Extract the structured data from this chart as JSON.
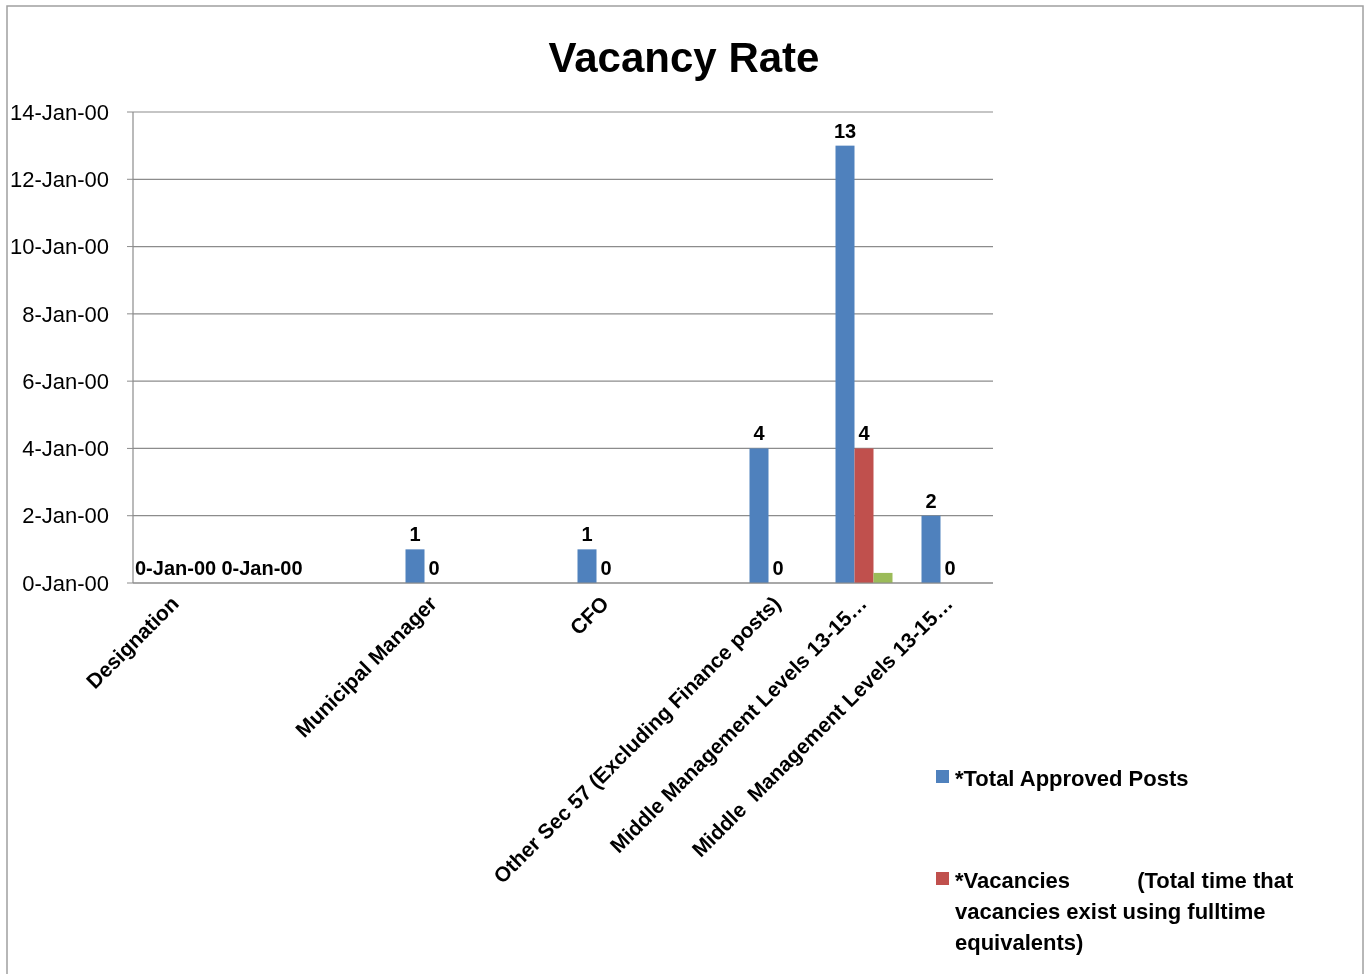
{
  "chart_data": {
    "type": "bar",
    "title": "Vacancy Rate",
    "categories": [
      "Designation",
      null,
      null,
      "Municipal Manager",
      null,
      "CFO",
      null,
      "Other Sec 57 (Excluding Finance posts)",
      "Middle Management Levels 13-15…",
      "Middle  Management Levels 13-15…"
    ],
    "series": [
      {
        "name": "*Total Approved Posts",
        "color": "#4f81bd",
        "values": [
          0,
          null,
          null,
          1,
          null,
          1,
          null,
          4,
          13,
          2
        ],
        "value_labels": [
          "0-Jan-00",
          null,
          null,
          "1",
          null,
          "1",
          null,
          "4",
          "13",
          "2"
        ]
      },
      {
        "name": "*Vacancies           (Total time that vacancies exist using fulltime equivalents)",
        "color": "#c0504d",
        "values": [
          null,
          0,
          null,
          0,
          null,
          0,
          null,
          0,
          4,
          0
        ],
        "value_labels": [
          null,
          "0-Jan-00",
          null,
          "0",
          null,
          "0",
          null,
          "0",
          "4",
          "0"
        ]
      },
      {
        "color": "#9bbb59",
        "values": [
          null,
          null,
          null,
          null,
          null,
          null,
          null,
          null,
          0.3,
          null
        ]
      }
    ],
    "ylim": [
      0,
      14
    ],
    "annotations": [
      "0-Jan-00",
      "2-Jan-00",
      "4-Jan-00",
      "6-Jan-00",
      "8-Jan-00",
      "10-Jan-00",
      "12-Jan-00",
      "14-Jan-00"
    ],
    "grid": "y",
    "legend": "right"
  }
}
